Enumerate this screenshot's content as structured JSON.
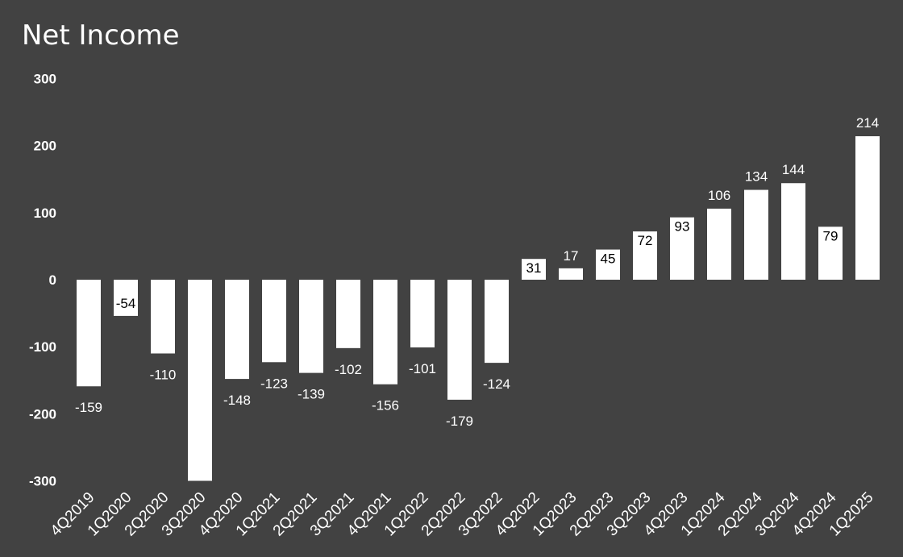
{
  "chart_data": {
    "type": "bar",
    "title": "Net Income",
    "xlabel": "",
    "ylabel": "",
    "ylim": [
      -300,
      300
    ],
    "yticks": [
      300,
      200,
      100,
      0,
      -100,
      -200,
      -300
    ],
    "grid": false,
    "legend": "none",
    "categories": [
      "4Q2019",
      "1Q2020",
      "2Q2020",
      "3Q2020",
      "4Q2020",
      "1Q2021",
      "2Q2021",
      "3Q2021",
      "4Q2021",
      "1Q2022",
      "2Q2022",
      "3Q2022",
      "4Q2022",
      "1Q2023",
      "2Q2023",
      "3Q2023",
      "4Q2023",
      "1Q2024",
      "2Q2024",
      "3Q2024",
      "4Q2024",
      "1Q2025"
    ],
    "values": [
      -159,
      -54,
      -110,
      -300,
      -148,
      -123,
      -139,
      -102,
      -156,
      -101,
      -179,
      -124,
      31,
      17,
      45,
      72,
      93,
      106,
      134,
      144,
      79,
      214
    ],
    "data_labels": [
      "-159",
      "-54",
      "-110",
      "",
      "-148",
      "-123",
      "-139",
      "-102",
      "-156",
      "-101",
      "-179",
      "-124",
      "31",
      "17",
      "45",
      "72",
      "93",
      "106",
      "134",
      "144",
      "79",
      "214"
    ],
    "colors": {
      "background": "#424242",
      "bar": "#ffffff",
      "text": "#ffffff",
      "label_inside": "#000000"
    }
  }
}
